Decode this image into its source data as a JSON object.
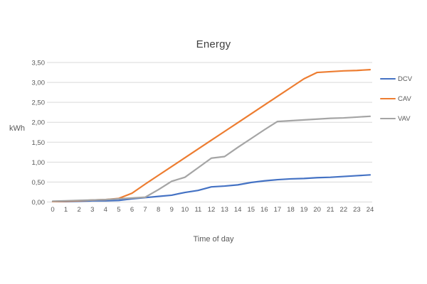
{
  "page": {
    "background_color": "#ffffff"
  },
  "chart_data": {
    "type": "line",
    "title": "Energy",
    "xlabel": "Time of day",
    "ylabel": "kWh",
    "x": [
      0,
      1,
      2,
      3,
      4,
      5,
      6,
      7,
      8,
      9,
      10,
      11,
      12,
      13,
      14,
      15,
      16,
      17,
      18,
      19,
      20,
      21,
      22,
      23,
      24
    ],
    "x_tick_labels": [
      "0",
      "1",
      "2",
      "3",
      "4",
      "5",
      "6",
      "7",
      "8",
      "9",
      "10",
      "11",
      "12",
      "13",
      "14",
      "15",
      "16",
      "17",
      "18",
      "19",
      "20",
      "21",
      "22",
      "23",
      "24"
    ],
    "series": [
      {
        "name": "DCV",
        "color": "#4472C4",
        "values": [
          0.01,
          0.01,
          0.02,
          0.03,
          0.03,
          0.04,
          0.08,
          0.11,
          0.14,
          0.17,
          0.24,
          0.29,
          0.38,
          0.4,
          0.43,
          0.49,
          0.53,
          0.56,
          0.58,
          0.59,
          0.61,
          0.62,
          0.64,
          0.66,
          0.68
        ]
      },
      {
        "name": "CAV",
        "color": "#ED7D31",
        "values": [
          0.01,
          0.02,
          0.03,
          0.05,
          0.06,
          0.09,
          0.22,
          0.45,
          0.67,
          0.89,
          1.11,
          1.33,
          1.55,
          1.77,
          1.99,
          2.21,
          2.43,
          2.65,
          2.87,
          3.09,
          3.25,
          3.27,
          3.29,
          3.3,
          3.32
        ]
      },
      {
        "name": "VAV",
        "color": "#A5A5A5",
        "values": [
          0.02,
          0.03,
          0.04,
          0.05,
          0.06,
          0.08,
          0.1,
          0.12,
          0.31,
          0.52,
          0.62,
          0.86,
          1.1,
          1.14,
          1.37,
          1.59,
          1.81,
          2.02,
          2.04,
          2.06,
          2.08,
          2.1,
          2.11,
          2.13,
          2.15
        ]
      }
    ],
    "ylim": [
      0,
      3.5
    ],
    "y_ticks": [
      0,
      0.5,
      1.0,
      1.5,
      2.0,
      2.5,
      3.0,
      3.5
    ],
    "y_tick_labels": [
      "0,00",
      "0,50",
      "1,00",
      "1,50",
      "2,00",
      "2,50",
      "3,00",
      "3,50"
    ],
    "grid": "horizontal",
    "legend_position": "right",
    "legend_entries": [
      "DCV",
      "CAV",
      "VAV"
    ],
    "style": {
      "gridline_color": "#D9D9D9",
      "axis_text_color": "#595959",
      "title_color": "#404040",
      "line_width": 2.2
    }
  }
}
